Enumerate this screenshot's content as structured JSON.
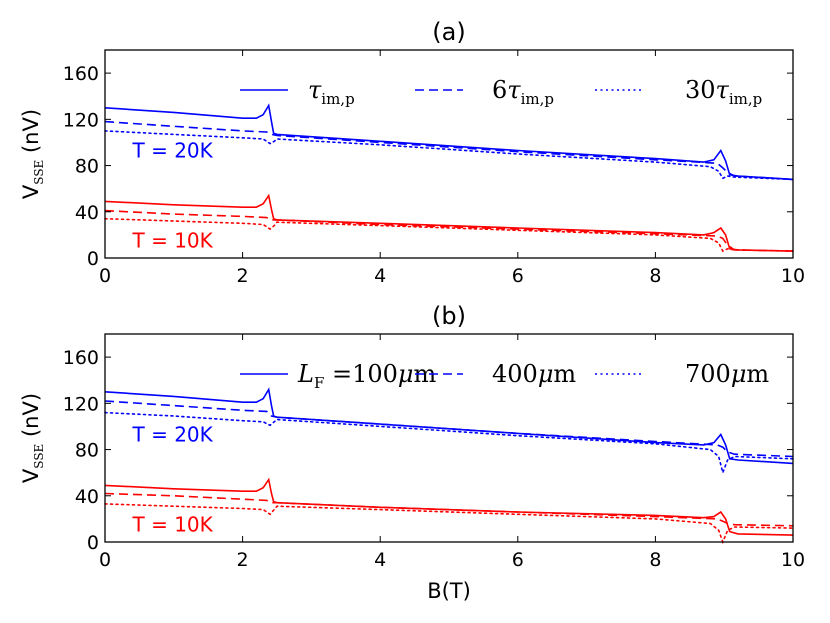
{
  "chart_data": [
    {
      "type": "line",
      "panel": "(a)",
      "title": "(a)",
      "xlabel": "",
      "ylabel": {
        "main": "V",
        "sub": "SSE",
        "unit": "(nV)"
      },
      "xlim": [
        0,
        10
      ],
      "ylim": [
        0,
        180
      ],
      "xticks": [
        0,
        2,
        4,
        6,
        8,
        10
      ],
      "yticks": [
        0,
        40,
        80,
        120,
        160
      ],
      "legend_position": "top",
      "legend": [
        {
          "style": "solid",
          "parts": [
            {
              "t": "τ",
              "i": true
            },
            {
              "t": "im,p",
              "sub": true
            }
          ]
        },
        {
          "style": "dashed",
          "parts": [
            {
              "t": "6",
              "i": false
            },
            {
              "t": "τ",
              "i": true
            },
            {
              "t": "im,p",
              "sub": true
            }
          ]
        },
        {
          "style": "dotted",
          "parts": [
            {
              "t": "30",
              "i": false
            },
            {
              "t": "τ",
              "i": true
            },
            {
              "t": "im,p",
              "sub": true
            }
          ]
        }
      ],
      "annotations": [
        {
          "text": "T = 20K",
          "color": "#0000ff",
          "at": [
            0.4,
            87
          ]
        },
        {
          "text": "T = 10K",
          "color": "#ff0000",
          "at": [
            0.4,
            9
          ]
        }
      ],
      "series": [
        {
          "name": "T=20K τ",
          "color": "#0000ff",
          "style": "solid",
          "x": [
            0,
            1,
            2,
            2.2,
            2.3,
            2.38,
            2.42,
            2.45,
            2.5,
            4,
            6,
            8,
            8.7,
            8.85,
            8.95,
            9.02,
            9.08,
            9.2,
            10
          ],
          "y": [
            130,
            126,
            121,
            121,
            124,
            132,
            118,
            108,
            107,
            101,
            93,
            86,
            83,
            85,
            93,
            84,
            72,
            71,
            68
          ]
        },
        {
          "name": "T=20K 6τ",
          "color": "#0000ff",
          "style": "dashed",
          "x": [
            0,
            1,
            2,
            2.35,
            2.42,
            2.5,
            4,
            6,
            8,
            8.9,
            8.98,
            9.05,
            9.15,
            10
          ],
          "y": [
            118,
            114,
            110,
            109,
            107,
            106,
            100,
            92,
            85,
            82,
            78,
            74,
            71,
            68
          ]
        },
        {
          "name": "T=20K 30τ",
          "color": "#0000ff",
          "style": "dotted",
          "x": [
            0,
            1,
            2,
            2.3,
            2.4,
            2.46,
            2.5,
            4,
            6,
            8,
            8.8,
            8.92,
            8.98,
            9.05,
            9.15,
            10
          ],
          "y": [
            110,
            107,
            104,
            103,
            99,
            101,
            103,
            98,
            90,
            83,
            79,
            75,
            69,
            71,
            70,
            68
          ]
        },
        {
          "name": "T=10K τ",
          "color": "#ff0000",
          "style": "solid",
          "x": [
            0,
            1,
            2,
            2.2,
            2.3,
            2.38,
            2.42,
            2.45,
            2.5,
            4,
            6,
            8,
            8.7,
            8.85,
            8.95,
            9.02,
            9.08,
            9.2,
            10
          ],
          "y": [
            49,
            46,
            44,
            44,
            47,
            54,
            42,
            34,
            33,
            30,
            26,
            22,
            20,
            22,
            26,
            20,
            8,
            7,
            6
          ]
        },
        {
          "name": "T=10K 6τ",
          "color": "#ff0000",
          "style": "dashed",
          "x": [
            0,
            1,
            2,
            2.35,
            2.42,
            2.5,
            4,
            6,
            8,
            8.9,
            8.98,
            9.05,
            9.15,
            10
          ],
          "y": [
            41,
            38,
            36,
            35,
            33,
            33,
            29,
            25,
            21,
            19,
            17,
            11,
            7,
            6
          ]
        },
        {
          "name": "T=10K 30τ",
          "color": "#ff0000",
          "style": "dotted",
          "x": [
            0,
            1,
            2,
            2.3,
            2.4,
            2.46,
            2.5,
            4,
            6,
            8,
            8.8,
            8.92,
            8.98,
            9.05,
            9.15,
            10
          ],
          "y": [
            34,
            32,
            30,
            29,
            25,
            28,
            31,
            28,
            24,
            20,
            17,
            13,
            6,
            8,
            7,
            6
          ]
        }
      ]
    },
    {
      "type": "line",
      "panel": "(b)",
      "title": "(b)",
      "xlabel": "B(T)",
      "ylabel": {
        "main": "V",
        "sub": "SSE",
        "unit": "(nV)"
      },
      "xlim": [
        0,
        10
      ],
      "ylim": [
        0,
        180
      ],
      "xticks": [
        0,
        2,
        4,
        6,
        8,
        10
      ],
      "yticks": [
        0,
        40,
        80,
        120,
        160
      ],
      "legend_position": "top",
      "legend": [
        {
          "style": "solid",
          "parts": [
            {
              "t": "L",
              "i": true
            },
            {
              "t": "F",
              "sub": true
            },
            {
              "t": " =100",
              "i": false
            },
            {
              "t": "μ",
              "i": true
            },
            {
              "t": "m",
              "i": false
            }
          ]
        },
        {
          "style": "dashed",
          "parts": [
            {
              "t": "400",
              "i": false
            },
            {
              "t": "μ",
              "i": true
            },
            {
              "t": "m",
              "i": false
            }
          ]
        },
        {
          "style": "dotted",
          "parts": [
            {
              "t": "700",
              "i": false
            },
            {
              "t": "μ",
              "i": true
            },
            {
              "t": "m",
              "i": false
            }
          ]
        }
      ],
      "annotations": [
        {
          "text": "T = 20K",
          "color": "#0000ff",
          "at": [
            0.4,
            87
          ]
        },
        {
          "text": "T = 10K",
          "color": "#ff0000",
          "at": [
            0.4,
            9
          ]
        }
      ],
      "series": [
        {
          "name": "T=20K 100μm",
          "color": "#0000ff",
          "style": "solid",
          "x": [
            0,
            1,
            2,
            2.2,
            2.3,
            2.38,
            2.42,
            2.45,
            2.5,
            4,
            6,
            8,
            8.7,
            8.85,
            8.95,
            9.02,
            9.08,
            9.2,
            10
          ],
          "y": [
            130,
            126,
            121,
            121,
            124,
            132,
            118,
            109,
            108,
            102,
            94,
            86,
            84,
            86,
            93,
            84,
            72,
            71,
            68
          ]
        },
        {
          "name": "T=20K 400μm",
          "color": "#0000ff",
          "style": "dashed",
          "x": [
            0,
            1,
            2,
            2.35,
            2.42,
            2.5,
            4,
            6,
            8,
            8.9,
            8.98,
            9.05,
            9.15,
            10
          ],
          "y": [
            122,
            118,
            114,
            113,
            109,
            108,
            102,
            94,
            87,
            84,
            82,
            78,
            76,
            74
          ]
        },
        {
          "name": "T=20K 700μm",
          "color": "#0000ff",
          "style": "dotted",
          "x": [
            0,
            1,
            2,
            2.3,
            2.4,
            2.46,
            2.5,
            4,
            6,
            8,
            8.8,
            8.92,
            8.98,
            9.05,
            9.15,
            10
          ],
          "y": [
            112,
            109,
            105,
            104,
            101,
            104,
            106,
            100,
            92,
            85,
            80,
            74,
            60,
            71,
            74,
            72
          ]
        },
        {
          "name": "T=10K 100μm",
          "color": "#ff0000",
          "style": "solid",
          "x": [
            0,
            1,
            2,
            2.2,
            2.3,
            2.38,
            2.42,
            2.45,
            2.5,
            4,
            6,
            8,
            8.7,
            8.85,
            8.95,
            9.02,
            9.08,
            9.2,
            10
          ],
          "y": [
            49,
            46,
            44,
            44,
            47,
            54,
            42,
            35,
            34,
            30,
            26,
            23,
            21,
            22,
            26,
            20,
            9,
            7,
            6
          ]
        },
        {
          "name": "T=10K 400μm",
          "color": "#ff0000",
          "style": "dashed",
          "x": [
            0,
            1,
            2,
            2.35,
            2.42,
            2.5,
            4,
            6,
            8,
            8.9,
            8.98,
            9.05,
            9.15,
            10
          ],
          "y": [
            42,
            40,
            37,
            36,
            34,
            34,
            30,
            26,
            22,
            20,
            18,
            16,
            15,
            14
          ]
        },
        {
          "name": "T=10K 700μm",
          "color": "#ff0000",
          "style": "dotted",
          "x": [
            0,
            1,
            2,
            2.3,
            2.4,
            2.46,
            2.5,
            4,
            6,
            8,
            8.8,
            8.92,
            8.98,
            9.05,
            9.15,
            10
          ],
          "y": [
            33,
            31,
            29,
            28,
            24,
            28,
            31,
            28,
            24,
            20,
            16,
            10,
            0,
            10,
            13,
            12
          ]
        }
      ]
    }
  ]
}
